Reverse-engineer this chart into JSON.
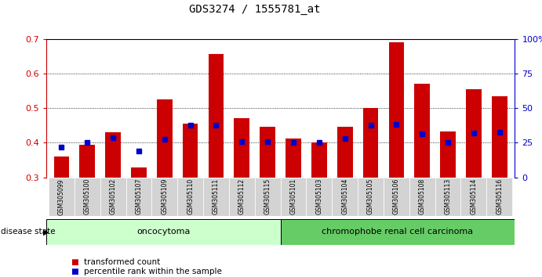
{
  "title": "GDS3274 / 1555781_at",
  "samples": [
    "GSM305099",
    "GSM305100",
    "GSM305102",
    "GSM305107",
    "GSM305109",
    "GSM305110",
    "GSM305111",
    "GSM305112",
    "GSM305115",
    "GSM305101",
    "GSM305103",
    "GSM305104",
    "GSM305105",
    "GSM305106",
    "GSM305108",
    "GSM305113",
    "GSM305114",
    "GSM305116"
  ],
  "transformed_count": [
    0.36,
    0.395,
    0.43,
    0.328,
    0.525,
    0.455,
    0.655,
    0.47,
    0.447,
    0.413,
    0.4,
    0.447,
    0.5,
    0.69,
    0.57,
    0.432,
    0.555,
    0.535
  ],
  "percentile_rank": [
    0.388,
    0.4,
    0.415,
    0.375,
    0.41,
    0.45,
    0.45,
    0.403,
    0.402,
    0.4,
    0.4,
    0.413,
    0.45,
    0.452,
    0.425,
    0.4,
    0.428,
    0.43
  ],
  "ylim_left": [
    0.3,
    0.7
  ],
  "ylim_right": [
    0,
    100
  ],
  "bar_color": "#cc0000",
  "dot_color": "#0000cc",
  "background_color": "#ffffff",
  "oncocytoma_count": 9,
  "chromophobe_count": 9,
  "oncocytoma_label": "oncocytoma",
  "chromophobe_label": "chromophobe renal cell carcinoma",
  "oncocytoma_color": "#ccffcc",
  "chromophobe_color": "#66cc66",
  "disease_state_label": "disease state",
  "legend1": "transformed count",
  "legend2": "percentile rank within the sample",
  "yticks_left": [
    0.3,
    0.4,
    0.5,
    0.6,
    0.7
  ],
  "yticks_right": [
    0,
    25,
    50,
    75,
    100
  ],
  "ytick_labels_right": [
    "0",
    "25",
    "50",
    "75",
    "100%"
  ]
}
